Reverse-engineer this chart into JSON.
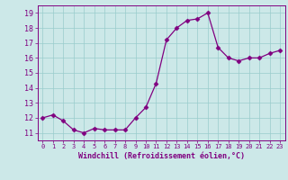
{
  "x": [
    0,
    1,
    2,
    3,
    4,
    5,
    6,
    7,
    8,
    9,
    10,
    11,
    12,
    13,
    14,
    15,
    16,
    17,
    18,
    19,
    20,
    21,
    22,
    23
  ],
  "y": [
    12.0,
    12.2,
    11.8,
    11.2,
    11.0,
    11.3,
    11.2,
    11.2,
    11.2,
    12.0,
    12.7,
    14.3,
    17.2,
    18.0,
    18.5,
    18.6,
    19.0,
    16.7,
    16.0,
    15.8,
    16.0,
    16.0,
    16.3,
    16.5
  ],
  "line_color": "#800080",
  "marker": "D",
  "marker_size": 2.5,
  "bg_color": "#cce8e8",
  "grid_color": "#99cccc",
  "xlabel": "Windchill (Refroidissement éolien,°C)",
  "xlabel_color": "#800080",
  "tick_color": "#800080",
  "ylim": [
    10.5,
    19.5
  ],
  "yticks": [
    11,
    12,
    13,
    14,
    15,
    16,
    17,
    18,
    19
  ],
  "xlim": [
    -0.5,
    23.5
  ],
  "xticks": [
    0,
    1,
    2,
    3,
    4,
    5,
    6,
    7,
    8,
    9,
    10,
    11,
    12,
    13,
    14,
    15,
    16,
    17,
    18,
    19,
    20,
    21,
    22,
    23
  ]
}
